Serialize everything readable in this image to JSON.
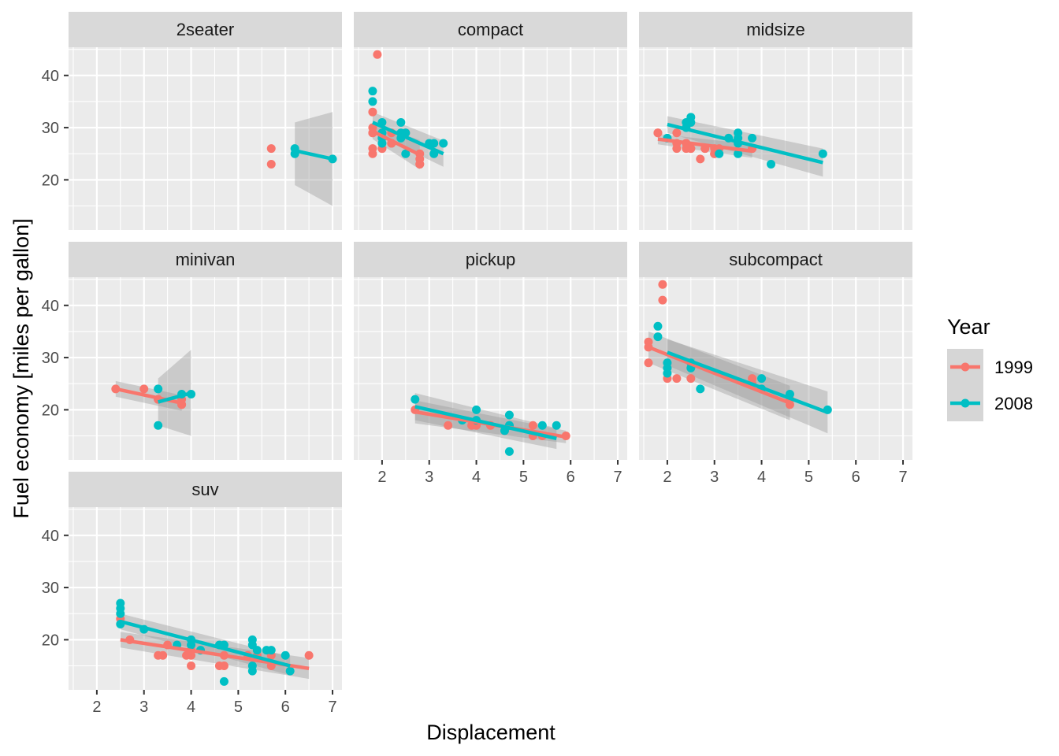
{
  "chart_data": {
    "type": "scatter",
    "facet_by": "class",
    "xlabel": "Displacement",
    "ylabel": "Fuel economy [miles per gallon]",
    "xlim": [
      1.4,
      7.2
    ],
    "ylim": [
      10.4,
      45.4
    ],
    "xticks": [
      2,
      3,
      4,
      5,
      6,
      7
    ],
    "yticks": [
      20,
      30,
      40
    ],
    "grid": true,
    "legend": {
      "title": "Year",
      "position": "right",
      "entries": [
        {
          "label": "1999",
          "color": "#F8766D"
        },
        {
          "label": "2008",
          "color": "#00BFC4"
        }
      ]
    },
    "colors": {
      "1999": "#F8766D",
      "2008": "#00BFC4",
      "panel_bg": "#EBEBEB",
      "strip_bg": "#D9D9D9",
      "band": "#999999"
    },
    "panels": [
      {
        "name": "2seater",
        "series": [
          {
            "name": "1999",
            "points": [
              [
                5.7,
                26
              ],
              [
                5.7,
                23
              ]
            ],
            "fit": null
          },
          {
            "name": "2008",
            "points": [
              [
                6.2,
                26
              ],
              [
                6.2,
                25
              ],
              [
                7.0,
                24
              ]
            ],
            "fit": {
              "x": [
                6.2,
                7.0
              ],
              "y": [
                25.6,
                24.0
              ],
              "band_lo": [
                19.0,
                15.0
              ],
              "band_hi": [
                31.0,
                33.0
              ]
            }
          }
        ]
      },
      {
        "name": "compact",
        "series": [
          {
            "name": "1999",
            "points": [
              [
                1.8,
                29
              ],
              [
                1.8,
                29
              ],
              [
                2.0,
                26
              ],
              [
                2.8,
                23
              ],
              [
                2.8,
                24
              ],
              [
                1.8,
                26
              ],
              [
                1.8,
                25
              ],
              [
                2.0,
                28
              ],
              [
                2.2,
                27
              ],
              [
                2.2,
                29
              ],
              [
                2.2,
                27
              ],
              [
                1.8,
                33
              ],
              [
                1.8,
                30
              ],
              [
                1.9,
                44
              ],
              [
                2.0,
                26
              ],
              [
                2.0,
                29
              ],
              [
                2.5,
                29
              ],
              [
                2.8,
                23
              ],
              [
                2.8,
                25
              ]
            ],
            "fit": {
              "x": [
                1.8,
                2.8
              ],
              "y": [
                29.3,
                24.8
              ],
              "band_lo": [
                27.8,
                22.0
              ],
              "band_hi": [
                30.8,
                27.6
              ]
            }
          },
          {
            "name": "2008",
            "points": [
              [
                2.0,
                31
              ],
              [
                2.0,
                27
              ],
              [
                3.1,
                25
              ],
              [
                1.8,
                37
              ],
              [
                1.8,
                35
              ],
              [
                2.0,
                29
              ],
              [
                2.0,
                28
              ],
              [
                2.4,
                31
              ],
              [
                2.4,
                29
              ],
              [
                3.0,
                27
              ],
              [
                2.5,
                25
              ],
              [
                2.5,
                29
              ],
              [
                3.1,
                27
              ],
              [
                3.3,
                27
              ],
              [
                2.0,
                28
              ],
              [
                2.4,
                28
              ]
            ],
            "fit": {
              "x": [
                1.8,
                3.3
              ],
              "y": [
                31.0,
                25.0
              ],
              "band_lo": [
                29.0,
                22.5
              ],
              "band_hi": [
                33.0,
                27.5
              ]
            }
          }
        ]
      },
      {
        "name": "midsize",
        "series": [
          {
            "name": "1999",
            "points": [
              [
                2.2,
                26
              ],
              [
                2.2,
                27
              ],
              [
                2.4,
                26
              ],
              [
                2.4,
                27
              ],
              [
                3.0,
                26
              ],
              [
                3.0,
                25
              ],
              [
                3.1,
                26
              ],
              [
                2.7,
                24
              ],
              [
                3.8,
                26
              ],
              [
                3.8,
                26
              ],
              [
                2.5,
                26
              ],
              [
                2.5,
                26
              ],
              [
                1.8,
                29
              ],
              [
                1.8,
                29
              ],
              [
                2.2,
                29
              ],
              [
                2.4,
                27
              ],
              [
                2.8,
                26
              ],
              [
                2.8,
                26
              ],
              [
                3.0,
                25
              ]
            ],
            "fit": {
              "x": [
                1.8,
                3.8
              ],
              "y": [
                27.8,
                25.5
              ],
              "band_lo": [
                26.8,
                24.2
              ],
              "band_hi": [
                28.8,
                26.8
              ]
            }
          },
          {
            "name": "2008",
            "points": [
              [
                2.0,
                28
              ],
              [
                2.4,
                31
              ],
              [
                2.4,
                30
              ],
              [
                2.5,
                32
              ],
              [
                2.5,
                31
              ],
              [
                3.3,
                28
              ],
              [
                3.5,
                29
              ],
              [
                3.5,
                28
              ],
              [
                3.5,
                25
              ],
              [
                3.8,
                28
              ],
              [
                4.2,
                23
              ],
              [
                5.3,
                25
              ],
              [
                3.5,
                27
              ],
              [
                3.1,
                25
              ]
            ],
            "fit": {
              "x": [
                2.0,
                5.3
              ],
              "y": [
                30.6,
                23.3
              ],
              "band_lo": [
                29.0,
                20.6
              ],
              "band_hi": [
                32.2,
                26.0
              ]
            }
          }
        ]
      },
      {
        "name": "minivan",
        "series": [
          {
            "name": "1999",
            "points": [
              [
                2.4,
                24
              ],
              [
                3.0,
                24
              ],
              [
                3.3,
                22
              ],
              [
                3.3,
                22
              ],
              [
                3.8,
                21
              ],
              [
                3.8,
                22
              ],
              [
                3.8,
                21
              ]
            ],
            "fit": {
              "x": [
                2.4,
                3.8
              ],
              "y": [
                24.0,
                21.3
              ],
              "band_lo": [
                22.5,
                19.8
              ],
              "band_hi": [
                25.5,
                22.8
              ]
            }
          },
          {
            "name": "2008",
            "points": [
              [
                3.3,
                24
              ],
              [
                3.3,
                17
              ],
              [
                3.8,
                23
              ],
              [
                4.0,
                23
              ]
            ],
            "fit": {
              "x": [
                3.3,
                4.0
              ],
              "y": [
                21.5,
                23.2
              ],
              "band_lo": [
                17.0,
                15.0
              ],
              "band_hi": [
                26.0,
                31.5
              ]
            }
          }
        ]
      },
      {
        "name": "pickup",
        "series": [
          {
            "name": "1999",
            "points": [
              [
                2.7,
                20
              ],
              [
                3.4,
                17
              ],
              [
                3.9,
                17
              ],
              [
                4.0,
                17
              ],
              [
                4.3,
                17
              ],
              [
                4.6,
                16
              ],
              [
                5.2,
                17
              ],
              [
                5.2,
                15
              ],
              [
                5.4,
                15
              ],
              [
                5.9,
                15
              ]
            ],
            "fit": {
              "x": [
                2.7,
                5.9
              ],
              "y": [
                19.6,
                14.8
              ],
              "band_lo": [
                17.4,
                13.6
              ],
              "band_hi": [
                21.8,
                16.0
              ]
            }
          },
          {
            "name": "2008",
            "points": [
              [
                2.7,
                22
              ],
              [
                3.7,
                18
              ],
              [
                4.0,
                20
              ],
              [
                4.0,
                18
              ],
              [
                4.6,
                16
              ],
              [
                4.7,
                19
              ],
              [
                4.7,
                17
              ],
              [
                4.7,
                12
              ],
              [
                5.4,
                17
              ],
              [
                5.7,
                17
              ],
              [
                4.7,
                17
              ]
            ],
            "fit": {
              "x": [
                2.7,
                5.7
              ],
              "y": [
                20.6,
                14.5
              ],
              "band_lo": [
                18.0,
                12.5
              ],
              "band_hi": [
                23.2,
                16.5
              ]
            }
          }
        ]
      },
      {
        "name": "subcompact",
        "series": [
          {
            "name": "1999",
            "points": [
              [
                1.6,
                33
              ],
              [
                1.6,
                32
              ],
              [
                1.6,
                29
              ],
              [
                1.9,
                44
              ],
              [
                1.9,
                41
              ],
              [
                2.0,
                26
              ],
              [
                2.2,
                26
              ],
              [
                2.5,
                26
              ],
              [
                3.8,
                26
              ],
              [
                3.8,
                25
              ],
              [
                4.6,
                21
              ],
              [
                4.6,
                22
              ]
            ],
            "fit": {
              "x": [
                1.6,
                4.6
              ],
              "y": [
                32.0,
                21.3
              ],
              "band_lo": [
                29.0,
                18.0
              ],
              "band_hi": [
                35.0,
                24.6
              ]
            }
          },
          {
            "name": "2008",
            "points": [
              [
                1.8,
                36
              ],
              [
                1.8,
                34
              ],
              [
                2.0,
                29
              ],
              [
                2.0,
                28
              ],
              [
                2.0,
                27
              ],
              [
                2.5,
                29
              ],
              [
                2.5,
                28
              ],
              [
                2.7,
                24
              ],
              [
                4.0,
                26
              ],
              [
                4.0,
                24
              ],
              [
                4.6,
                23
              ],
              [
                5.4,
                20
              ]
            ],
            "fit": {
              "x": [
                2.0,
                5.4
              ],
              "y": [
                31.0,
                19.5
              ],
              "band_lo": [
                28.5,
                15.5
              ],
              "band_hi": [
                33.5,
                23.5
              ]
            }
          }
        ]
      },
      {
        "name": "suv",
        "series": [
          {
            "name": "1999",
            "points": [
              [
                2.5,
                24
              ],
              [
                2.7,
                20
              ],
              [
                3.3,
                17
              ],
              [
                3.4,
                17
              ],
              [
                3.5,
                19
              ],
              [
                3.9,
                17
              ],
              [
                4.0,
                15
              ],
              [
                4.0,
                17
              ],
              [
                4.0,
                18
              ],
              [
                4.6,
                15
              ],
              [
                4.7,
                15
              ],
              [
                4.7,
                17
              ],
              [
                5.2,
                17
              ],
              [
                5.4,
                17
              ],
              [
                5.7,
                15
              ],
              [
                5.7,
                17
              ],
              [
                6.5,
                17
              ]
            ],
            "fit": {
              "x": [
                2.5,
                6.5
              ],
              "y": [
                20.0,
                14.5
              ],
              "band_lo": [
                18.5,
                12.5
              ],
              "band_hi": [
                21.5,
                16.5
              ]
            }
          },
          {
            "name": "2008",
            "points": [
              [
                2.5,
                27
              ],
              [
                2.5,
                26
              ],
              [
                2.5,
                25
              ],
              [
                2.5,
                23
              ],
              [
                3.0,
                22
              ],
              [
                3.7,
                19
              ],
              [
                4.0,
                20
              ],
              [
                4.0,
                19
              ],
              [
                4.2,
                18
              ],
              [
                4.6,
                19
              ],
              [
                4.7,
                19
              ],
              [
                4.7,
                12
              ],
              [
                5.3,
                20
              ],
              [
                5.3,
                19
              ],
              [
                5.3,
                15
              ],
              [
                5.3,
                14
              ],
              [
                5.4,
                18
              ],
              [
                5.6,
                18
              ],
              [
                5.7,
                18
              ],
              [
                6.0,
                17
              ],
              [
                6.1,
                14
              ]
            ],
            "fit": {
              "x": [
                2.5,
                6.1
              ],
              "y": [
                23.5,
                15.0
              ],
              "band_lo": [
                22.0,
                13.2
              ],
              "band_hi": [
                25.0,
                16.8
              ]
            }
          }
        ]
      }
    ]
  }
}
